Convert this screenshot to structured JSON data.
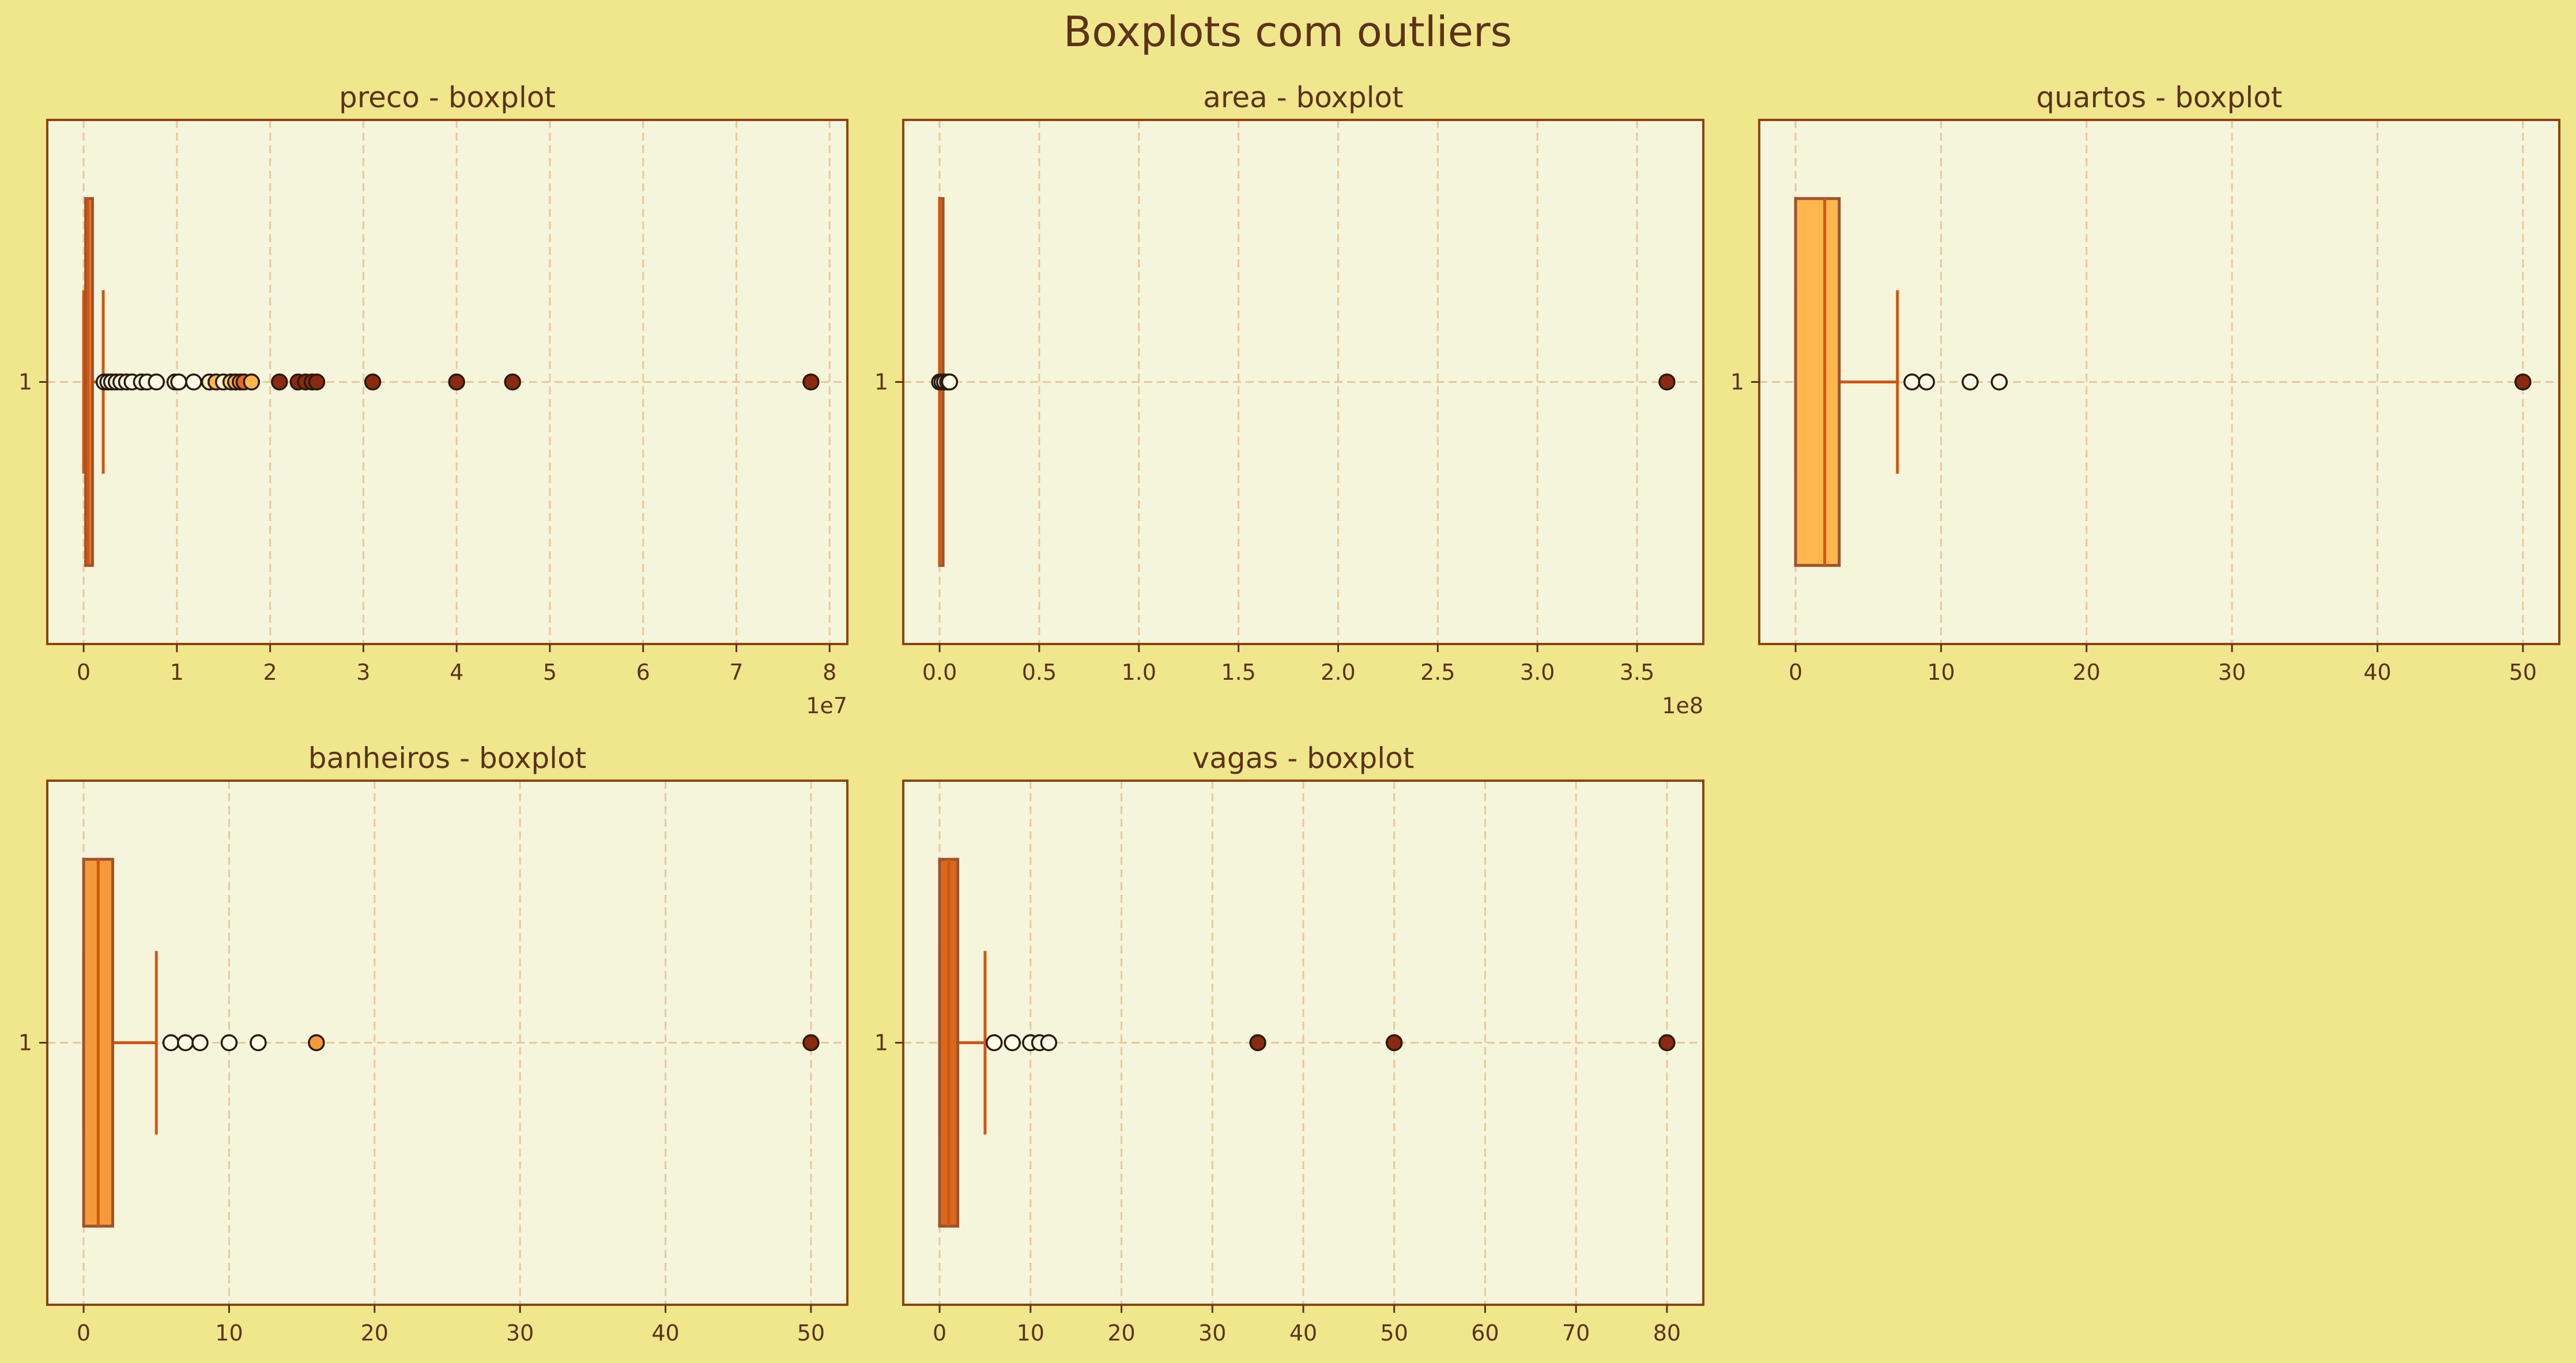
{
  "figure": {
    "title": "Boxplots com outliers",
    "colors": {
      "figure_bg": "#f0e68c",
      "axes_bg": "#f5f5dc",
      "spine": "#8b4513",
      "text": "#5c3317",
      "grid": "#e8c89a",
      "whisker": "#d2560f",
      "median": "#d2560f",
      "outlier_edge": "#2a1a0a"
    }
  },
  "chart_data": [
    {
      "type": "boxplot",
      "title": "preco - boxplot",
      "xlabel": "",
      "ylabel": "",
      "orientation": "horizontal",
      "category": "1",
      "xlim": [
        -3900000,
        81900000
      ],
      "xticks": [
        0,
        10000000,
        20000000,
        30000000,
        40000000,
        50000000,
        60000000,
        70000000,
        80000000
      ],
      "xtick_labels": [
        "0",
        "1",
        "2",
        "3",
        "4",
        "5",
        "6",
        "7",
        "8"
      ],
      "offset_label": "1e7",
      "grid": true,
      "box_color": "#e07a2a",
      "stats": {
        "whisker_low": 0,
        "q1": 220000,
        "median": 450000,
        "q3": 950000,
        "whisker_high": 2100000
      },
      "outliers": [
        {
          "v": 2200000,
          "c": "#fffde8"
        },
        {
          "v": 2600000,
          "c": "#fffde8"
        },
        {
          "v": 3000000,
          "c": "#fffde8"
        },
        {
          "v": 3500000,
          "c": "#fffde8"
        },
        {
          "v": 4000000,
          "c": "#fffde8"
        },
        {
          "v": 4600000,
          "c": "#fffde8"
        },
        {
          "v": 5200000,
          "c": "#fffde8"
        },
        {
          "v": 6200000,
          "c": "#fffde8"
        },
        {
          "v": 6800000,
          "c": "#fffde8"
        },
        {
          "v": 7800000,
          "c": "#fffde8"
        },
        {
          "v": 9800000,
          "c": "#fffde8"
        },
        {
          "v": 10200000,
          "c": "#fffde8"
        },
        {
          "v": 11800000,
          "c": "#fffde8"
        },
        {
          "v": 13500000,
          "c": "#fff3c4"
        },
        {
          "v": 14200000,
          "c": "#ffb74d"
        },
        {
          "v": 15000000,
          "c": "#fff3c4"
        },
        {
          "v": 15800000,
          "c": "#ffcc80"
        },
        {
          "v": 16300000,
          "c": "#ffb74d"
        },
        {
          "v": 16800000,
          "c": "#f59a3a"
        },
        {
          "v": 17200000,
          "c": "#e8681e"
        },
        {
          "v": 18000000,
          "c": "#ffb74d"
        },
        {
          "v": 21000000,
          "c": "#8b2a0e"
        },
        {
          "v": 23000000,
          "c": "#8b2a0e"
        },
        {
          "v": 23800000,
          "c": "#8b2a0e"
        },
        {
          "v": 24500000,
          "c": "#8b2a0e"
        },
        {
          "v": 25000000,
          "c": "#8b2a0e"
        },
        {
          "v": 31000000,
          "c": "#8b2a0e"
        },
        {
          "v": 40000000,
          "c": "#8b2a0e"
        },
        {
          "v": 46000000,
          "c": "#8b2a0e"
        },
        {
          "v": 78000000,
          "c": "#8b2a0e"
        }
      ]
    },
    {
      "type": "boxplot",
      "title": "area - boxplot",
      "xlabel": "",
      "ylabel": "",
      "orientation": "horizontal",
      "category": "1",
      "xlim": [
        -18250000,
        383250000
      ],
      "xticks": [
        0,
        50000000,
        100000000,
        150000000,
        200000000,
        250000000,
        300000000,
        350000000
      ],
      "xtick_labels": [
        "0.0",
        "0.5",
        "1.0",
        "1.5",
        "2.0",
        "2.5",
        "3.0",
        "3.5"
      ],
      "offset_label": "1e8",
      "grid": true,
      "box_color": "#e07a2a",
      "stats": {
        "whisker_low": 0,
        "q1": 60,
        "median": 100,
        "q3": 180,
        "whisker_high": 500
      },
      "outliers": [
        {
          "v": 0,
          "c": "#fffde8"
        },
        {
          "v": 1200000,
          "c": "#fffde8"
        },
        {
          "v": 2500000,
          "c": "#fffde8"
        },
        {
          "v": 4000000,
          "c": "#fffde8"
        },
        {
          "v": 5000000,
          "c": "#fffde8"
        },
        {
          "v": 365000000,
          "c": "#8b2a0e"
        }
      ]
    },
    {
      "type": "boxplot",
      "title": "quartos - boxplot",
      "xlabel": "",
      "ylabel": "",
      "orientation": "horizontal",
      "category": "1",
      "xlim": [
        -2.5,
        52.5
      ],
      "xticks": [
        0,
        10,
        20,
        30,
        40,
        50
      ],
      "xtick_labels": [
        "0",
        "10",
        "20",
        "30",
        "40",
        "50"
      ],
      "offset_label": "",
      "grid": true,
      "box_color": "#ffb74d",
      "stats": {
        "whisker_low": 0,
        "q1": 0,
        "median": 2,
        "q3": 3,
        "whisker_high": 7
      },
      "outliers": [
        {
          "v": 8,
          "c": "#fffde8"
        },
        {
          "v": 9,
          "c": "#fffde8"
        },
        {
          "v": 12,
          "c": "#fffde8"
        },
        {
          "v": 14,
          "c": "#fffde8"
        },
        {
          "v": 50,
          "c": "#8b2a0e"
        }
      ]
    },
    {
      "type": "boxplot",
      "title": "banheiros - boxplot",
      "xlabel": "",
      "ylabel": "",
      "orientation": "horizontal",
      "category": "1",
      "xlim": [
        -2.5,
        52.5
      ],
      "xticks": [
        0,
        10,
        20,
        30,
        40,
        50
      ],
      "xtick_labels": [
        "0",
        "10",
        "20",
        "30",
        "40",
        "50"
      ],
      "offset_label": "",
      "grid": true,
      "box_color": "#f59a3a",
      "stats": {
        "whisker_low": 0,
        "q1": 0,
        "median": 1,
        "q3": 2,
        "whisker_high": 5
      },
      "outliers": [
        {
          "v": 6,
          "c": "#fffde8"
        },
        {
          "v": 7,
          "c": "#fffde8"
        },
        {
          "v": 8,
          "c": "#fffde8"
        },
        {
          "v": 10,
          "c": "#fffde8"
        },
        {
          "v": 12,
          "c": "#fffde8"
        },
        {
          "v": 16,
          "c": "#f59a3a"
        },
        {
          "v": 50,
          "c": "#8b2a0e"
        }
      ]
    },
    {
      "type": "boxplot",
      "title": "vagas - boxplot",
      "xlabel": "",
      "ylabel": "",
      "orientation": "horizontal",
      "category": "1",
      "xlim": [
        -4,
        84
      ],
      "xticks": [
        0,
        10,
        20,
        30,
        40,
        50,
        60,
        70,
        80
      ],
      "xtick_labels": [
        "0",
        "10",
        "20",
        "30",
        "40",
        "50",
        "60",
        "70",
        "80"
      ],
      "offset_label": "",
      "grid": true,
      "box_color": "#d9671c",
      "stats": {
        "whisker_low": 0,
        "q1": 0,
        "median": 1,
        "q3": 2,
        "whisker_high": 5
      },
      "outliers": [
        {
          "v": 6,
          "c": "#fffde8"
        },
        {
          "v": 8,
          "c": "#fffde8"
        },
        {
          "v": 10,
          "c": "#fffde8"
        },
        {
          "v": 11,
          "c": "#fffde8"
        },
        {
          "v": 12,
          "c": "#fffde8"
        },
        {
          "v": 35,
          "c": "#8b2a0e"
        },
        {
          "v": 50,
          "c": "#8b2a0e"
        },
        {
          "v": 80,
          "c": "#8b2a0e"
        }
      ]
    }
  ]
}
